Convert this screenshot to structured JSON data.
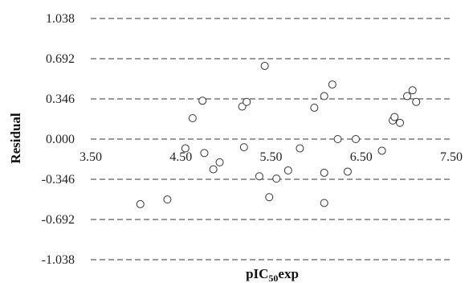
{
  "chart_data": {
    "type": "scatter",
    "title": "",
    "xlabel_main": "pIC",
    "xlabel_sub": "50",
    "xlabel_tail": "exp",
    "ylabel": "Residual",
    "xlim": [
      3.5,
      7.5
    ],
    "ylim": [
      -1.038,
      1.038
    ],
    "x_ticks": [
      "3.50",
      "4.50",
      "5.50",
      "6.50",
      "7.50"
    ],
    "y_ticks": [
      "1.038",
      "0.692",
      "0.346",
      "0.000",
      "-0.346",
      "-0.692",
      "-1.038"
    ],
    "grid": "horizontal dashed",
    "marker": "open circle",
    "points": [
      {
        "x": 4.05,
        "y": -0.56
      },
      {
        "x": 4.35,
        "y": -0.52
      },
      {
        "x": 4.55,
        "y": -0.08
      },
      {
        "x": 4.63,
        "y": 0.18
      },
      {
        "x": 4.74,
        "y": 0.33
      },
      {
        "x": 4.76,
        "y": -0.12
      },
      {
        "x": 4.86,
        "y": -0.26
      },
      {
        "x": 4.93,
        "y": -0.2
      },
      {
        "x": 5.18,
        "y": 0.28
      },
      {
        "x": 5.2,
        "y": -0.07
      },
      {
        "x": 5.23,
        "y": 0.32
      },
      {
        "x": 5.37,
        "y": -0.32
      },
      {
        "x": 5.43,
        "y": 0.63
      },
      {
        "x": 5.48,
        "y": -0.5
      },
      {
        "x": 5.56,
        "y": -0.34
      },
      {
        "x": 5.69,
        "y": -0.27
      },
      {
        "x": 5.82,
        "y": -0.08
      },
      {
        "x": 5.98,
        "y": 0.27
      },
      {
        "x": 6.09,
        "y": 0.37
      },
      {
        "x": 6.09,
        "y": -0.29
      },
      {
        "x": 6.09,
        "y": -0.55
      },
      {
        "x": 6.18,
        "y": 0.47
      },
      {
        "x": 6.24,
        "y": 0.0
      },
      {
        "x": 6.35,
        "y": -0.28
      },
      {
        "x": 6.44,
        "y": 0.0
      },
      {
        "x": 6.73,
        "y": -0.1
      },
      {
        "x": 6.85,
        "y": 0.16
      },
      {
        "x": 6.87,
        "y": 0.19
      },
      {
        "x": 6.93,
        "y": 0.14
      },
      {
        "x": 7.01,
        "y": 0.37
      },
      {
        "x": 7.07,
        "y": 0.42
      },
      {
        "x": 7.11,
        "y": 0.32
      }
    ]
  }
}
